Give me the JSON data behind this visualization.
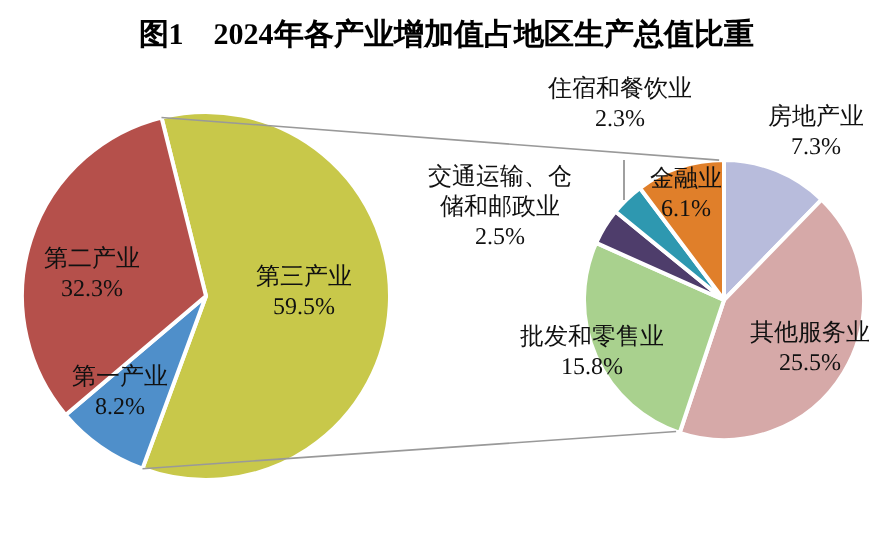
{
  "chart_data": [
    {
      "type": "pie",
      "title": "图1　2024年各产业增加值占地区生产总值比重",
      "categories": [
        "第三产业",
        "第一产业",
        "第二产业"
      ],
      "values": [
        59.5,
        8.2,
        32.3
      ],
      "value_labels": [
        "59.5%",
        "8.2%",
        "32.3%"
      ],
      "colors": [
        "#c8c84a",
        "#4f8fca",
        "#b5504b"
      ]
    },
    {
      "type": "pie",
      "categories": [
        "房地产业",
        "其他服务业",
        "批发和零售业",
        "交通运输、仓储和邮政业",
        "住宿和餐饮业",
        "金融业"
      ],
      "values": [
        7.3,
        25.5,
        15.8,
        2.5,
        2.3,
        6.1
      ],
      "value_labels": [
        "7.3%",
        "25.5%",
        "15.8%",
        "2.5%",
        "2.3%",
        "6.1%"
      ],
      "colors": [
        "#b8bcdc",
        "#d6a9a8",
        "#a9d18e",
        "#4e3d6b",
        "#2e98b0",
        "#e07f2a"
      ]
    }
  ]
}
